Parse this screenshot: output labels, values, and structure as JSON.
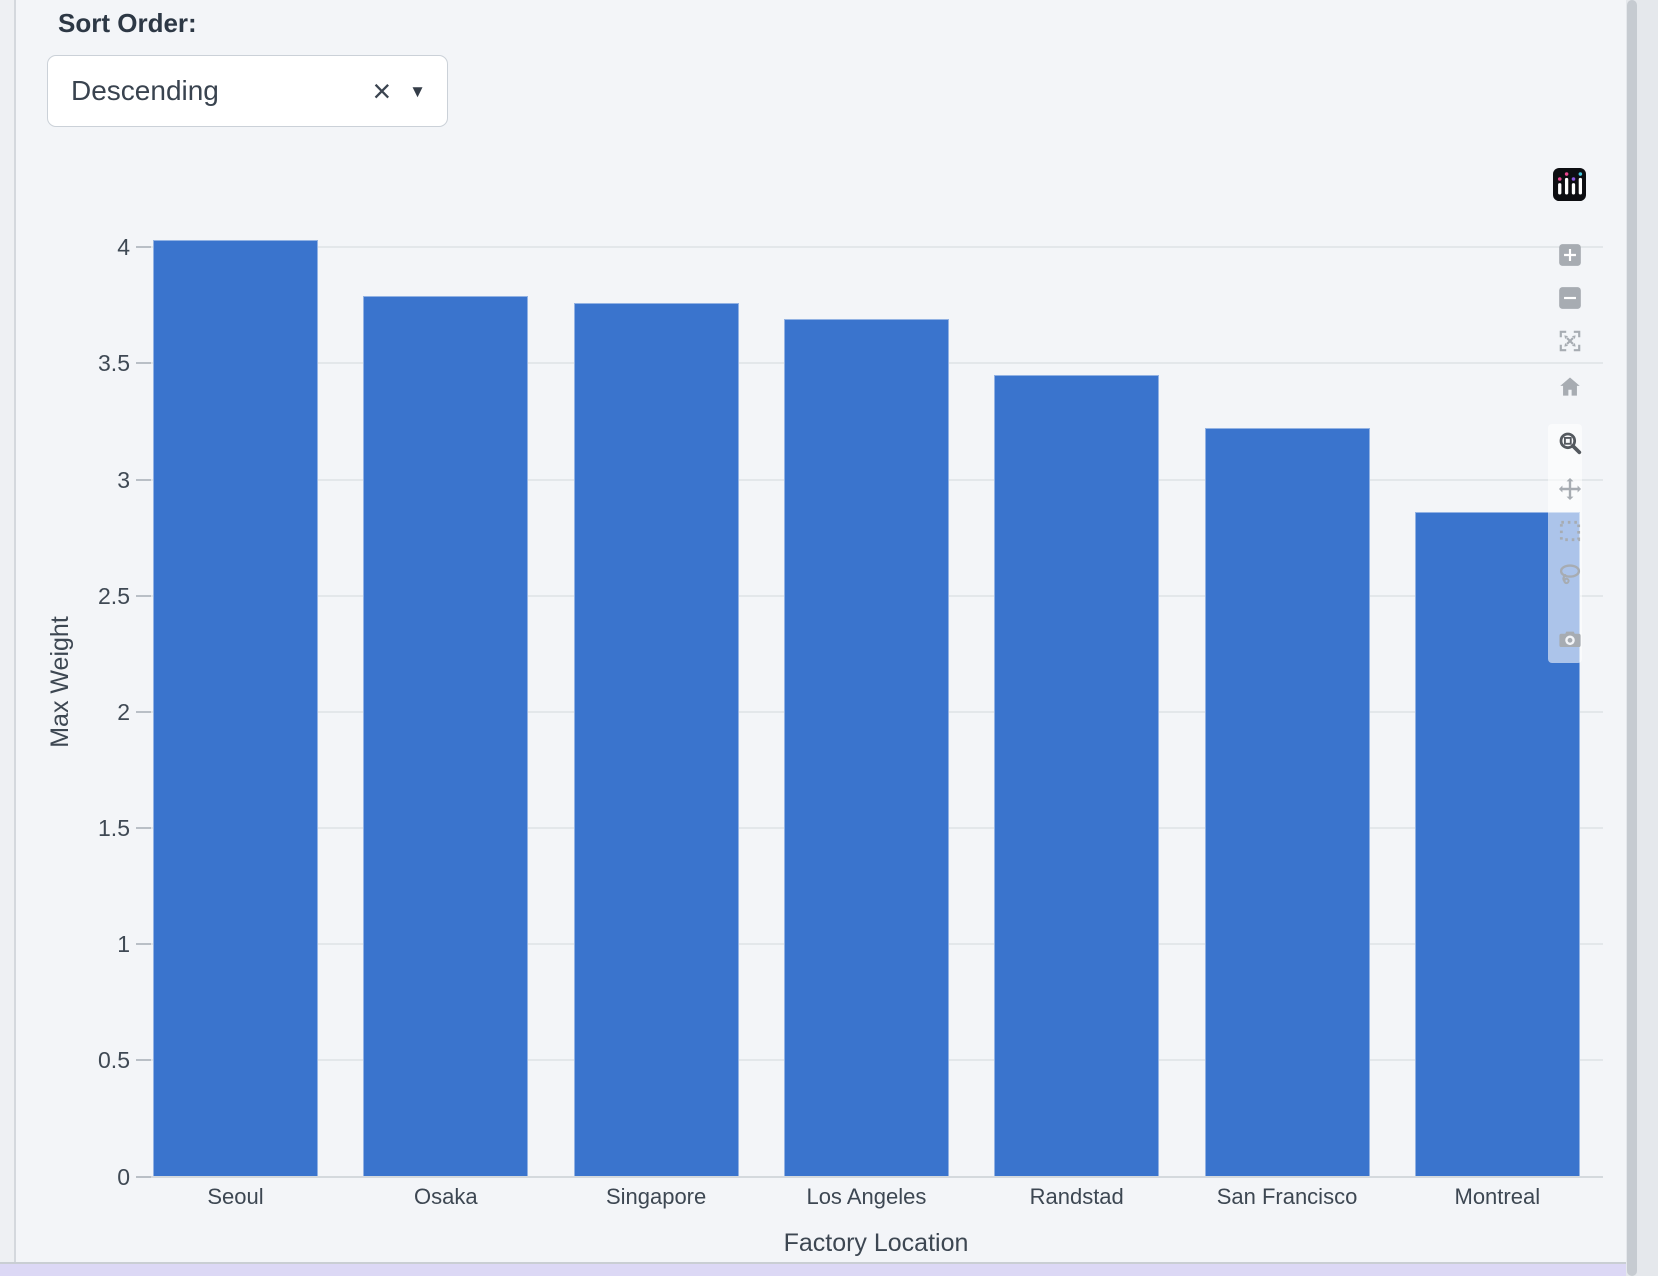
{
  "controls": {
    "sort_order_label": "Sort Order:",
    "sort_dropdown": {
      "value": "Descending",
      "clear_icon": "×",
      "caret_icon": "▼"
    }
  },
  "chart_data": {
    "type": "bar",
    "title": "",
    "categories": [
      "Seoul",
      "Osaka",
      "Singapore",
      "Los Angeles",
      "Randstad",
      "San Francisco",
      "Montreal"
    ],
    "values": [
      4.03,
      3.79,
      3.76,
      3.69,
      3.45,
      3.22,
      2.86
    ],
    "xlabel": "Factory Location",
    "ylabel": "Max Weight",
    "ylim": [
      0,
      4.45
    ],
    "yticks": [
      0,
      0.5,
      1,
      1.5,
      2,
      2.5,
      3,
      3.5,
      4
    ],
    "sort": "descending",
    "grid": true,
    "legend": "none",
    "bar_color": "#3a74cd"
  },
  "modebar": {
    "buttons": [
      "zoom-in",
      "zoom-out",
      "autoscale",
      "reset-axes-home",
      "zoom",
      "pan",
      "box-select",
      "lasso-select",
      "download-camera"
    ],
    "active_button": "zoom",
    "logo": "plotly-logo"
  },
  "colors": {
    "background": "#f3f5f8",
    "bar": "#3a74cd",
    "gridline": "#e3e7ea",
    "zeroline": "#d4d9dd",
    "axis_text": "#3d4752",
    "bottom_accent_strip": "#dcd8f5"
  }
}
